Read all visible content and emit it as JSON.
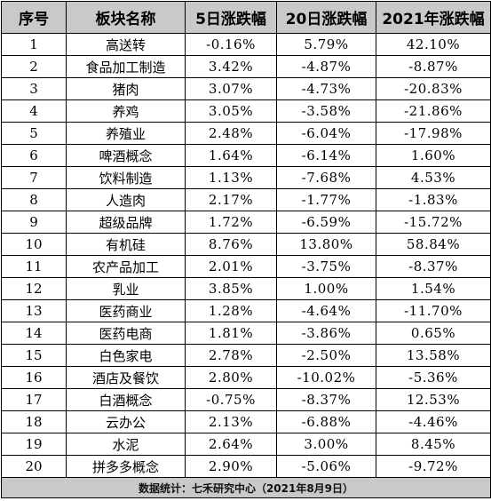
{
  "table": {
    "headers": [
      "序号",
      "板块名称",
      "5日涨跌幅",
      "20日涨跌幅",
      "2021年涨跌幅"
    ],
    "rows": [
      [
        "1",
        "高送转",
        "-0.16%",
        "5.79%",
        "42.10%"
      ],
      [
        "2",
        "食品加工制造",
        "3.42%",
        "-4.87%",
        "-8.87%"
      ],
      [
        "3",
        "猪肉",
        "3.07%",
        "-4.73%",
        "-20.83%"
      ],
      [
        "4",
        "养鸡",
        "3.05%",
        "-3.58%",
        "-21.86%"
      ],
      [
        "5",
        "养殖业",
        "2.48%",
        "-6.04%",
        "-17.98%"
      ],
      [
        "6",
        "啤酒概念",
        "1.64%",
        "-6.14%",
        "1.60%"
      ],
      [
        "7",
        "饮料制造",
        "1.13%",
        "-7.68%",
        "4.53%"
      ],
      [
        "8",
        "人造肉",
        "2.17%",
        "-1.77%",
        "-1.83%"
      ],
      [
        "9",
        "超级品牌",
        "1.72%",
        "-6.59%",
        "-15.72%"
      ],
      [
        "10",
        "有机硅",
        "8.76%",
        "13.80%",
        "58.84%"
      ],
      [
        "11",
        "农产品加工",
        "2.01%",
        "-3.75%",
        "-8.37%"
      ],
      [
        "12",
        "乳业",
        "3.85%",
        "1.00%",
        "1.54%"
      ],
      [
        "13",
        "医药商业",
        "1.28%",
        "-4.64%",
        "-11.70%"
      ],
      [
        "14",
        "医药电商",
        "1.81%",
        "-3.86%",
        "0.65%"
      ],
      [
        "15",
        "白色家电",
        "2.78%",
        "-2.50%",
        "13.58%"
      ],
      [
        "16",
        "酒店及餐饮",
        "2.80%",
        "-10.02%",
        "-5.36%"
      ],
      [
        "17",
        "白酒概念",
        "-0.75%",
        "-8.37%",
        "12.53%"
      ],
      [
        "18",
        "云办公",
        "2.13%",
        "-6.88%",
        "-4.46%"
      ],
      [
        "19",
        "水泥",
        "2.64%",
        "3.00%",
        "8.45%"
      ],
      [
        "20",
        "拼多多概念",
        "2.90%",
        "-5.06%",
        "-9.72%"
      ]
    ],
    "footer": "数据统计：七禾研究中心（2021年8月9日）"
  },
  "colors": {
    "header_bg": "#c9c9c9",
    "footer_bg": "#c9c9c9",
    "border": "#000000",
    "text": "#000000"
  }
}
